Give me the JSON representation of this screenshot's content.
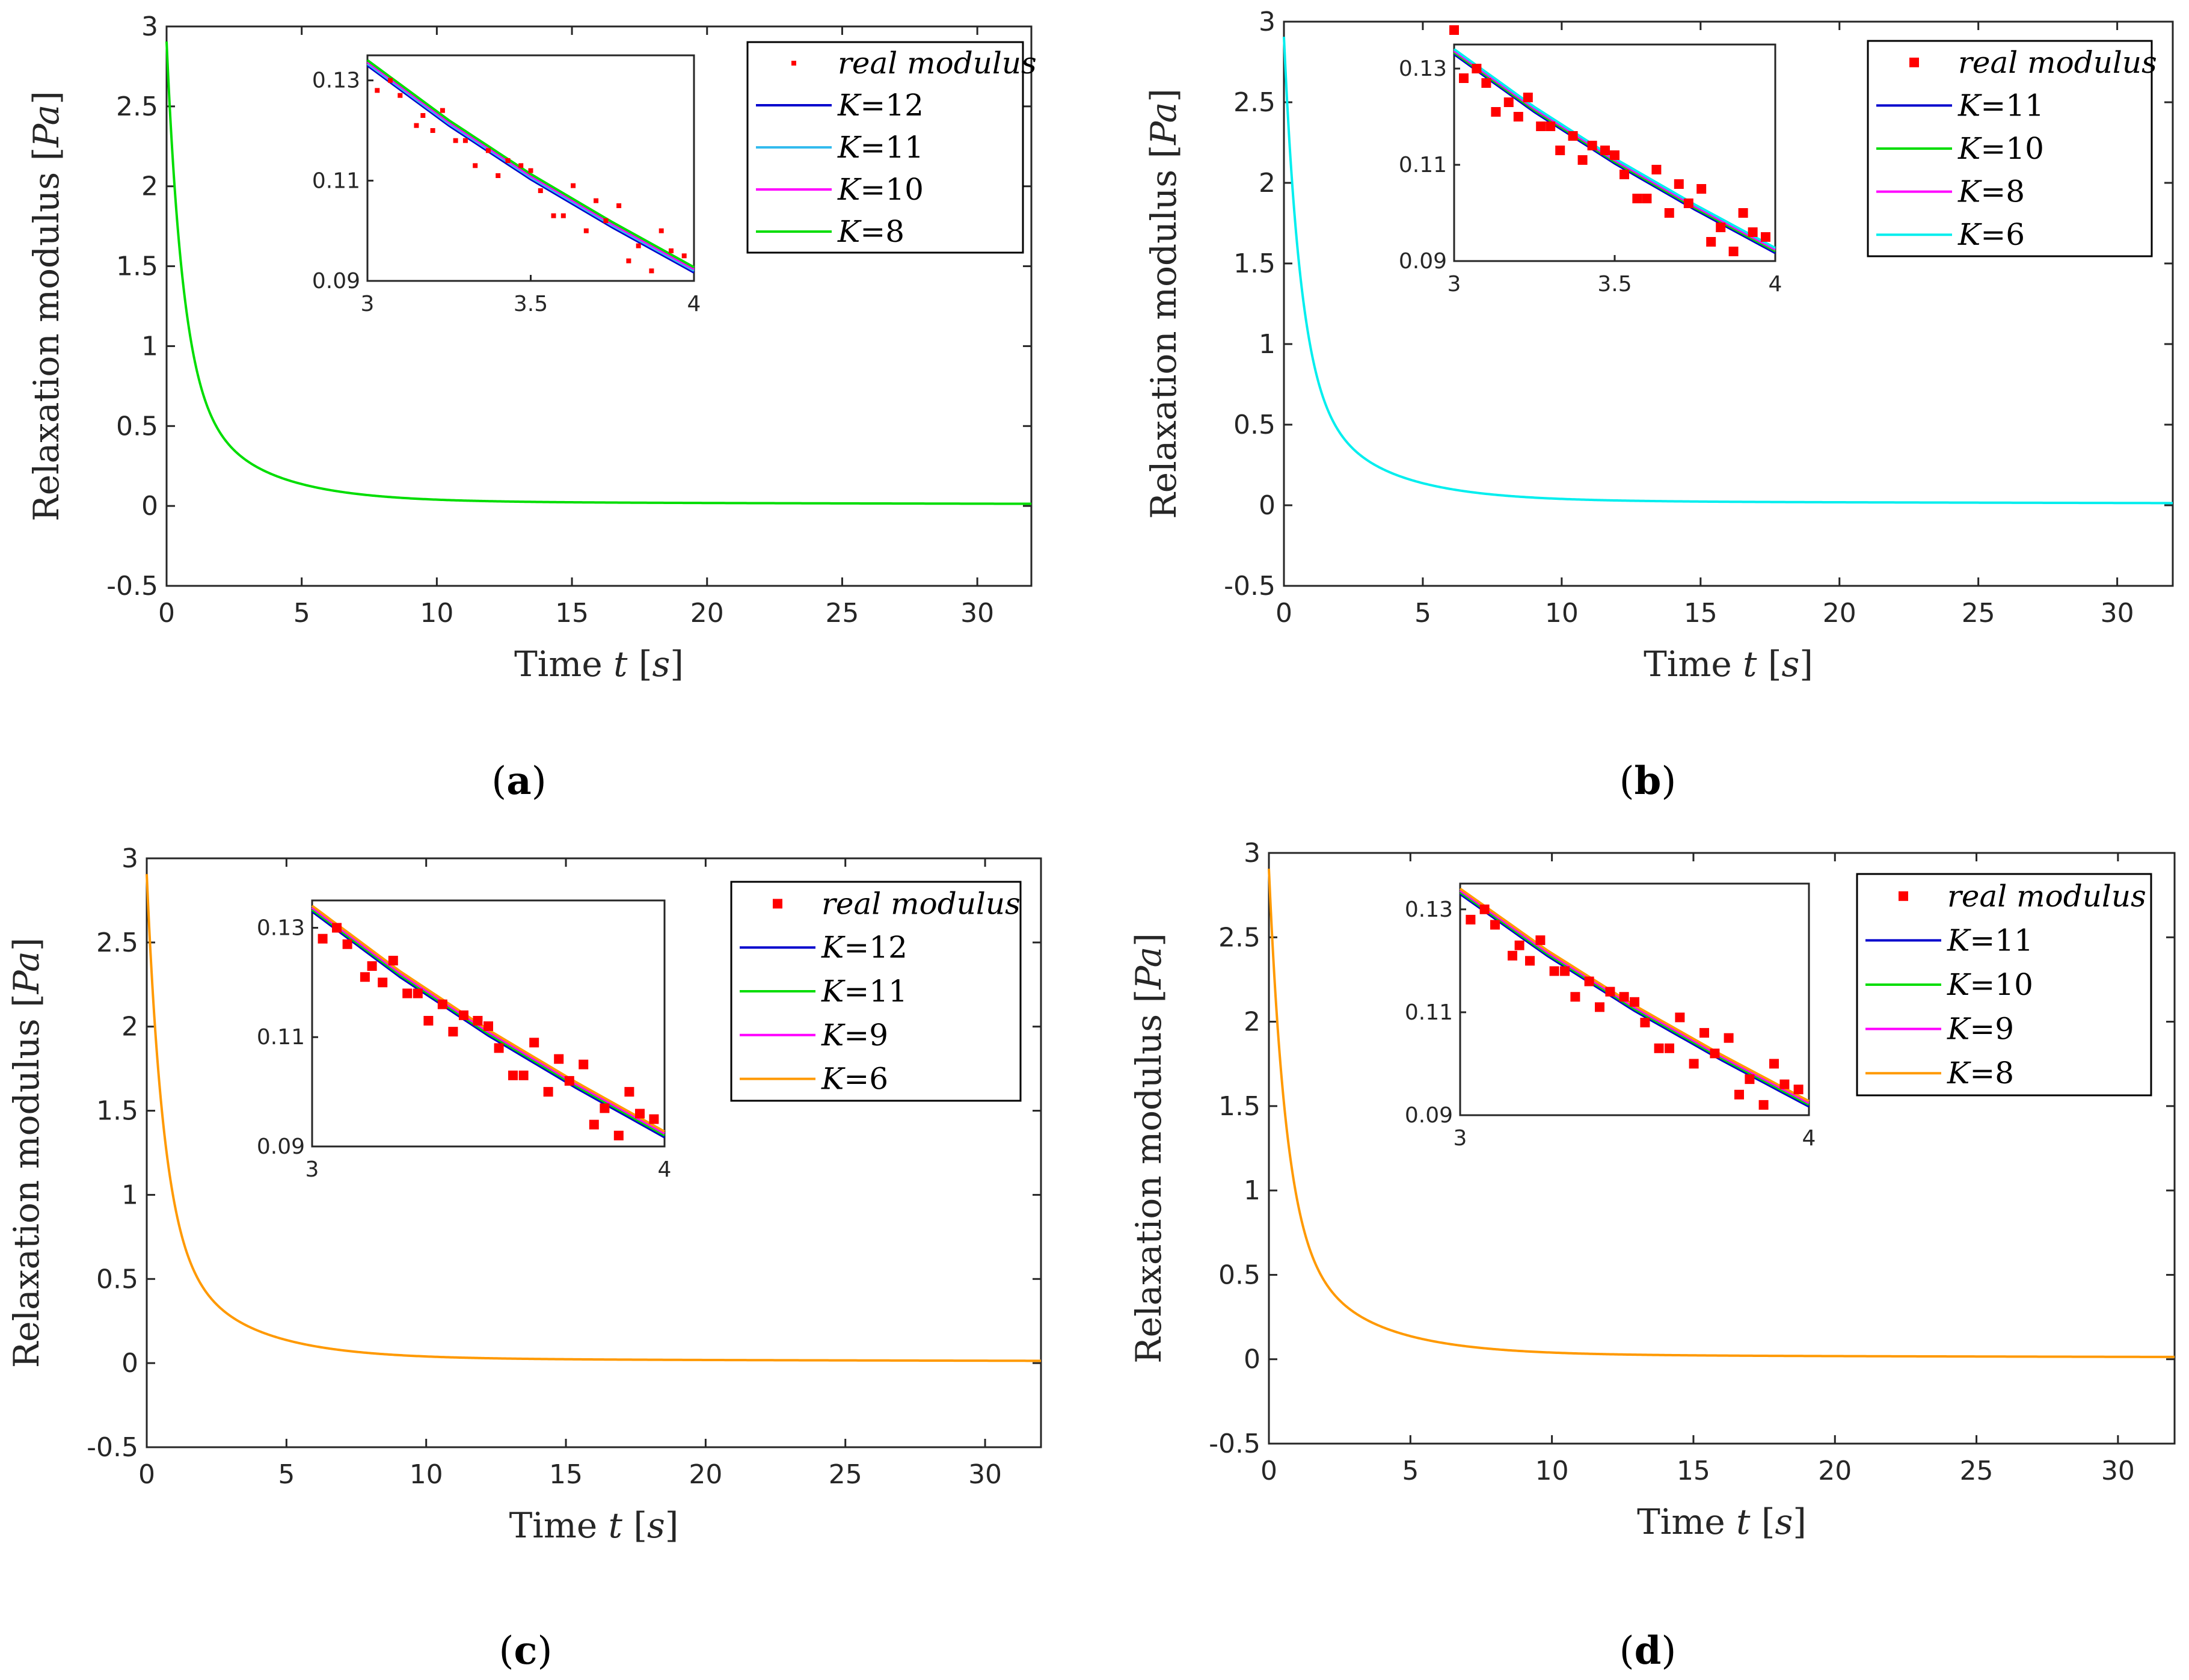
{
  "colors": {
    "axis": "#262626",
    "real_modulus": "#ff0000",
    "blue": "#0000cd",
    "sky": "#33bbee",
    "cyan": "#00eeee",
    "magenta": "#ff00ff",
    "green": "#00dd00",
    "orange": "#ff9900"
  },
  "chart_data": [
    {
      "type": "line",
      "caption_letter": "a",
      "xlabel_text": "Time",
      "xlabel_var": "t",
      "xlabel_unit": "s",
      "ylabel_text": "Relaxation modulus",
      "ylabel_unit": "Pa",
      "xlim": [
        0,
        32
      ],
      "ylim": [
        -0.5,
        3
      ],
      "xticks": [
        0,
        5,
        10,
        15,
        20,
        25,
        30
      ],
      "yticks": [
        -0.5,
        0,
        0.5,
        1,
        1.5,
        2,
        2.5,
        3
      ],
      "legend_location": "top-right",
      "legend": [
        {
          "name": "real modulus",
          "kind": "marker",
          "color": "real_modulus"
        },
        {
          "name_var": "K",
          "name_val": "=12",
          "kind": "line",
          "color": "blue"
        },
        {
          "name_var": "K",
          "name_val": "=11",
          "kind": "line",
          "color": "sky"
        },
        {
          "name_var": "K",
          "name_val": "=10",
          "kind": "line",
          "color": "magenta"
        },
        {
          "name_var": "K",
          "name_val": "=8",
          "kind": "line",
          "color": "green"
        }
      ],
      "main_curve_color": "green",
      "inset": {
        "xlim": [
          3,
          4
        ],
        "ylim": [
          0.09,
          0.135
        ],
        "xticks": [
          3,
          3.5,
          4
        ],
        "xtick_labels": [
          "3",
          "3.5",
          "4"
        ],
        "yticks": [
          0.09,
          0.11,
          0.13
        ],
        "ytick_labels": [
          "0.09",
          "0.11",
          "0.13"
        ],
        "curve": {
          "x": [
            3.0,
            3.25,
            3.5,
            3.75,
            4.0
          ],
          "y": [
            0.1335,
            0.1215,
            0.1108,
            0.1012,
            0.0922
          ]
        },
        "points": {
          "x": [
            3.03,
            3.07,
            3.1,
            3.15,
            3.17,
            3.2,
            3.23,
            3.27,
            3.3,
            3.33,
            3.37,
            3.4,
            3.43,
            3.47,
            3.5,
            3.53,
            3.57,
            3.6,
            3.63,
            3.67,
            3.7,
            3.73,
            3.77,
            3.8,
            3.83,
            3.87,
            3.9,
            3.93,
            3.97
          ],
          "y": [
            0.128,
            0.13,
            0.127,
            0.121,
            0.123,
            0.12,
            0.124,
            0.118,
            0.118,
            0.113,
            0.116,
            0.111,
            0.114,
            0.113,
            0.112,
            0.108,
            0.103,
            0.103,
            0.109,
            0.1,
            0.106,
            0.102,
            0.105,
            0.094,
            0.097,
            0.092,
            0.1,
            0.096,
            0.095
          ]
        }
      }
    },
    {
      "type": "line",
      "caption_letter": "b",
      "xlabel_text": "Time",
      "xlabel_var": "t",
      "xlabel_unit": "s",
      "ylabel_text": "Relaxation modulus",
      "ylabel_unit": "Pa",
      "xlim": [
        0,
        32
      ],
      "ylim": [
        -0.5,
        3
      ],
      "xticks": [
        0,
        5,
        10,
        15,
        20,
        25,
        30
      ],
      "yticks": [
        -0.5,
        0,
        0.5,
        1,
        1.5,
        2,
        2.5,
        3
      ],
      "legend_location": "top-right",
      "legend": [
        {
          "name": "real modulus",
          "kind": "marker",
          "color": "real_modulus"
        },
        {
          "name_var": "K",
          "name_val": "=11",
          "kind": "line",
          "color": "blue"
        },
        {
          "name_var": "K",
          "name_val": "=10",
          "kind": "line",
          "color": "green"
        },
        {
          "name_var": "K",
          "name_val": "=8",
          "kind": "line",
          "color": "magenta"
        },
        {
          "name_var": "K",
          "name_val": "=6",
          "kind": "line",
          "color": "cyan"
        }
      ],
      "main_curve_color": "cyan",
      "inset": {
        "xlim": [
          3,
          4
        ],
        "ylim": [
          0.09,
          0.135
        ],
        "xticks": [
          3,
          3.5,
          4
        ],
        "xtick_labels": [
          "3",
          "3.5",
          "4"
        ],
        "yticks": [
          0.09,
          0.11,
          0.13
        ],
        "ytick_labels": [
          "0.09",
          "0.11",
          "0.13"
        ],
        "curve": {
          "x": [
            3.0,
            3.25,
            3.5,
            3.75,
            4.0
          ],
          "y": [
            0.1335,
            0.1215,
            0.1108,
            0.1012,
            0.0922
          ]
        },
        "points": {
          "x": [
            3.0,
            3.03,
            3.07,
            3.1,
            3.13,
            3.17,
            3.2,
            3.23,
            3.27,
            3.3,
            3.33,
            3.37,
            3.4,
            3.43,
            3.47,
            3.5,
            3.53,
            3.57,
            3.6,
            3.63,
            3.67,
            3.7,
            3.73,
            3.77,
            3.8,
            3.83,
            3.87,
            3.9,
            3.93,
            3.97
          ],
          "y": [
            0.138,
            0.128,
            0.13,
            0.127,
            0.121,
            0.123,
            0.12,
            0.124,
            0.118,
            0.118,
            0.113,
            0.116,
            0.111,
            0.114,
            0.113,
            0.112,
            0.108,
            0.103,
            0.103,
            0.109,
            0.1,
            0.106,
            0.102,
            0.105,
            0.094,
            0.097,
            0.092,
            0.1,
            0.096,
            0.095
          ]
        }
      }
    },
    {
      "type": "line",
      "caption_letter": "c",
      "xlabel_text": "Time",
      "xlabel_var": "t",
      "xlabel_unit": "s",
      "ylabel_text": "Relaxation modulus",
      "ylabel_unit": "Pa",
      "xlim": [
        0,
        32
      ],
      "ylim": [
        -0.5,
        3
      ],
      "xticks": [
        0,
        5,
        10,
        15,
        20,
        25,
        30
      ],
      "yticks": [
        -0.5,
        0,
        0.5,
        1,
        1.5,
        2,
        2.5,
        3
      ],
      "legend_location": "top-right",
      "legend": [
        {
          "name": "real modulus",
          "kind": "marker",
          "color": "real_modulus"
        },
        {
          "name_var": "K",
          "name_val": "=12",
          "kind": "line",
          "color": "blue"
        },
        {
          "name_var": "K",
          "name_val": "=11",
          "kind": "line",
          "color": "green"
        },
        {
          "name_var": "K",
          "name_val": "=9",
          "kind": "line",
          "color": "magenta"
        },
        {
          "name_var": "K",
          "name_val": "=6",
          "kind": "line",
          "color": "orange"
        }
      ],
      "main_curve_color": "orange",
      "inset": {
        "xlim": [
          3,
          4
        ],
        "ylim": [
          0.09,
          0.135
        ],
        "xticks": [
          3,
          4
        ],
        "xtick_labels": [
          "3",
          "4"
        ],
        "yticks": [
          0.09,
          0.11,
          0.13
        ],
        "ytick_labels": [
          "0.09",
          "0.11",
          "0.13"
        ],
        "curve": {
          "x": [
            3.0,
            3.25,
            3.5,
            3.75,
            4.0
          ],
          "y": [
            0.1335,
            0.1215,
            0.1108,
            0.1012,
            0.0922
          ]
        },
        "points": {
          "x": [
            3.03,
            3.07,
            3.1,
            3.15,
            3.17,
            3.2,
            3.23,
            3.27,
            3.3,
            3.33,
            3.37,
            3.4,
            3.43,
            3.47,
            3.5,
            3.53,
            3.57,
            3.6,
            3.63,
            3.67,
            3.7,
            3.73,
            3.77,
            3.8,
            3.83,
            3.87,
            3.9,
            3.93,
            3.97
          ],
          "y": [
            0.128,
            0.13,
            0.127,
            0.121,
            0.123,
            0.12,
            0.124,
            0.118,
            0.118,
            0.113,
            0.116,
            0.111,
            0.114,
            0.113,
            0.112,
            0.108,
            0.103,
            0.103,
            0.109,
            0.1,
            0.106,
            0.102,
            0.105,
            0.094,
            0.097,
            0.092,
            0.1,
            0.096,
            0.095
          ]
        }
      }
    },
    {
      "type": "line",
      "caption_letter": "d",
      "xlabel_text": "Time",
      "xlabel_var": "t",
      "xlabel_unit": "s",
      "ylabel_text": "Relaxation modulus",
      "ylabel_unit": "Pa",
      "xlim": [
        0,
        32
      ],
      "ylim": [
        -0.5,
        3
      ],
      "xticks": [
        0,
        5,
        10,
        15,
        20,
        25,
        30
      ],
      "yticks": [
        -0.5,
        0,
        0.5,
        1,
        1.5,
        2,
        2.5,
        3
      ],
      "legend_location": "top-right",
      "legend": [
        {
          "name": "real modulus",
          "kind": "marker",
          "color": "real_modulus"
        },
        {
          "name_var": "K",
          "name_val": "=11",
          "kind": "line",
          "color": "blue"
        },
        {
          "name_var": "K",
          "name_val": "=10",
          "kind": "line",
          "color": "green"
        },
        {
          "name_var": "K",
          "name_val": "=9",
          "kind": "line",
          "color": "magenta"
        },
        {
          "name_var": "K",
          "name_val": "=8",
          "kind": "line",
          "color": "orange"
        }
      ],
      "main_curve_color": "orange",
      "inset": {
        "xlim": [
          3,
          4
        ],
        "ylim": [
          0.09,
          0.135
        ],
        "xticks": [
          3,
          4
        ],
        "xtick_labels": [
          "3",
          "4"
        ],
        "yticks": [
          0.09,
          0.11,
          0.13
        ],
        "ytick_labels": [
          "0.09",
          "0.11",
          "0.13"
        ],
        "curve": {
          "x": [
            3.0,
            3.25,
            3.5,
            3.75,
            4.0
          ],
          "y": [
            0.1335,
            0.1215,
            0.1108,
            0.1012,
            0.0922
          ]
        },
        "points": {
          "x": [
            3.03,
            3.07,
            3.1,
            3.15,
            3.17,
            3.2,
            3.23,
            3.27,
            3.3,
            3.33,
            3.37,
            3.4,
            3.43,
            3.47,
            3.5,
            3.53,
            3.57,
            3.6,
            3.63,
            3.67,
            3.7,
            3.73,
            3.77,
            3.8,
            3.83,
            3.87,
            3.9,
            3.93,
            3.97
          ],
          "y": [
            0.128,
            0.13,
            0.127,
            0.121,
            0.123,
            0.12,
            0.124,
            0.118,
            0.118,
            0.113,
            0.116,
            0.111,
            0.114,
            0.113,
            0.112,
            0.108,
            0.103,
            0.103,
            0.109,
            0.1,
            0.106,
            0.102,
            0.105,
            0.094,
            0.097,
            0.092,
            0.1,
            0.096,
            0.095
          ]
        }
      }
    }
  ]
}
